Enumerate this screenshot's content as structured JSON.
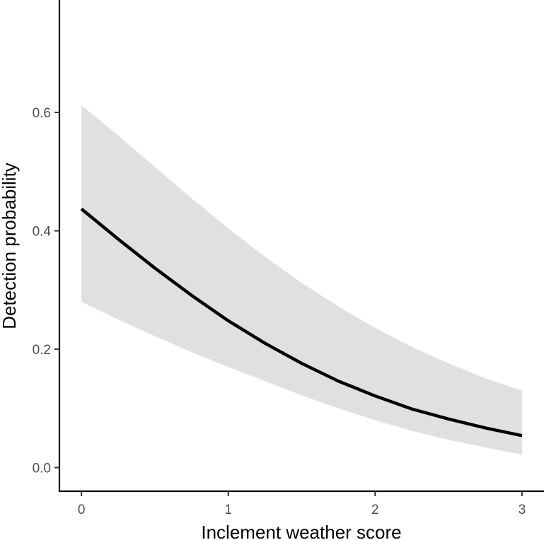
{
  "chart_data": {
    "type": "line",
    "xlabel": "Inclement weather score",
    "ylabel": "Detection probability",
    "xlim": [
      -0.15,
      3.15
    ],
    "ylim": [
      -0.04,
      0.79
    ],
    "x_ticks": [
      0,
      1,
      2,
      3
    ],
    "x_tick_labels": [
      "0",
      "1",
      "2",
      "3"
    ],
    "y_ticks": [
      0.0,
      0.2,
      0.4,
      0.6
    ],
    "y_tick_labels": [
      "0.0",
      "0.2",
      "0.4",
      "0.6"
    ],
    "grid": false,
    "legend": "none",
    "series": [
      {
        "x": [
          0,
          0.25,
          0.5,
          0.75,
          1.0,
          1.25,
          1.5,
          1.75,
          2.0,
          2.25,
          2.5,
          2.75,
          3.0
        ],
        "y": [
          0.437,
          0.386,
          0.337,
          0.291,
          0.248,
          0.21,
          0.176,
          0.146,
          0.121,
          0.099,
          0.082,
          0.067,
          0.054
        ],
        "lower": [
          0.28,
          0.25,
          0.222,
          0.195,
          0.17,
          0.146,
          0.122,
          0.1,
          0.08,
          0.062,
          0.047,
          0.034,
          0.022
        ],
        "upper": [
          0.612,
          0.561,
          0.508,
          0.455,
          0.404,
          0.356,
          0.312,
          0.272,
          0.236,
          0.204,
          0.176,
          0.151,
          0.13
        ]
      }
    ],
    "colors": {
      "line": "#000000",
      "ribbon": "#e0e0e0",
      "axis": "#000000",
      "tick_label": "#4d4d4d"
    }
  }
}
